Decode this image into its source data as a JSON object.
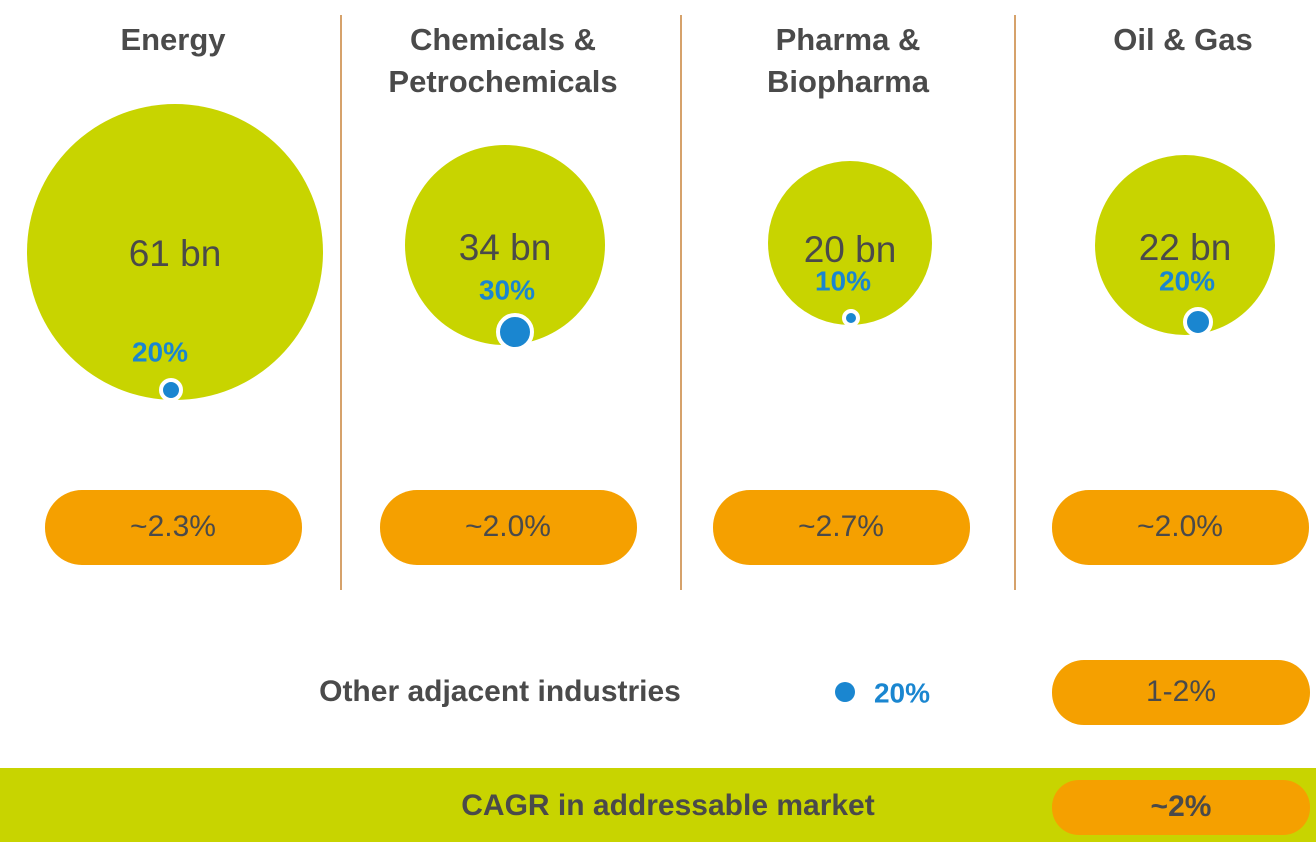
{
  "columns": [
    {
      "title": [
        "Energy"
      ],
      "market": "61 bn",
      "share": "20%",
      "cagr": "~2.3%"
    },
    {
      "title": [
        "Chemicals &",
        "Petrochemicals"
      ],
      "market": "34 bn",
      "share": "30%",
      "cagr": "~2.0%"
    },
    {
      "title": [
        "Pharma &",
        "Biopharma"
      ],
      "market": "20 bn",
      "share": "10%",
      "cagr": "~2.7%"
    },
    {
      "title": [
        "Oil & Gas"
      ],
      "market": "22 bn",
      "share": "20%",
      "cagr": "~2.0%"
    }
  ],
  "other": {
    "label": "Other adjacent industries",
    "share": "20%",
    "cagr": "1-2%"
  },
  "total": {
    "label": "CAGR in addressable market",
    "cagr": "~2%"
  }
}
